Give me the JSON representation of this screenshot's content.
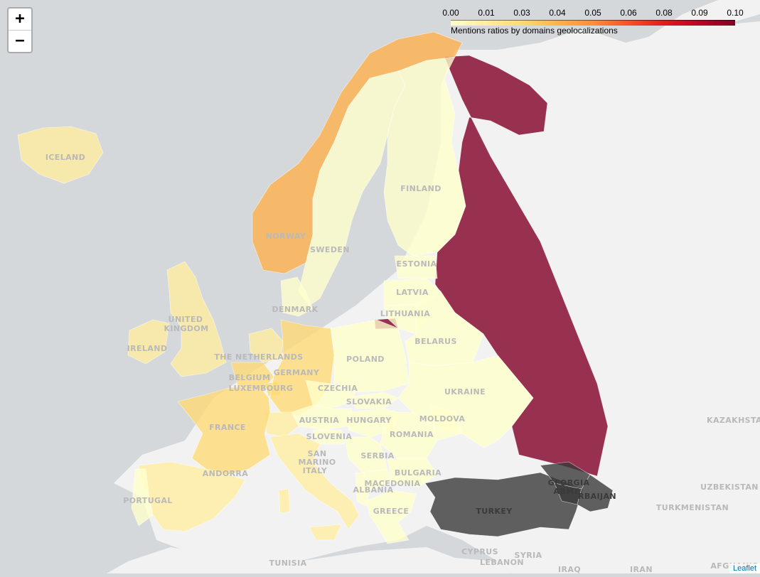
{
  "map": {
    "zoom_in_label": "+",
    "zoom_out_label": "−",
    "attribution": "Leaflet"
  },
  "legend": {
    "caption": "Mentions ratios by domains geolocalizations",
    "ticks": [
      "0.00",
      "0.01",
      "0.03",
      "0.04",
      "0.05",
      "0.06",
      "0.08",
      "0.09",
      "0.10"
    ],
    "domain": [
      0,
      0.1
    ],
    "colors": [
      "#ffffcc",
      "#ffeda0",
      "#fed976",
      "#feb24c",
      "#fd8d3c",
      "#fc4e2a",
      "#e31a1c",
      "#bd0026",
      "#800026"
    ]
  },
  "colors": {
    "sea": "#d4d8da",
    "land": "#f2f2f2",
    "no_data": "#3a3a3a"
  },
  "countries": {
    "russia": {
      "label": "",
      "value": 0.1
    },
    "turkey": {
      "label": "TURKEY",
      "value": null
    },
    "norway": {
      "label": "NORWAY",
      "value": 0.04
    },
    "sweden": {
      "label": "SWEDEN",
      "value": 0.0
    },
    "finland": {
      "label": "FINLAND",
      "value": 0.0
    },
    "iceland": {
      "label": "ICELAND",
      "value": 0.01
    },
    "germany": {
      "label": "GERMANY",
      "value": 0.02
    },
    "france": {
      "label": "FRANCE",
      "value": 0.02
    },
    "spain": {
      "label": "",
      "value": 0.015
    },
    "portugal": {
      "label": "PORTUGAL",
      "value": 0.0
    },
    "uk": {
      "label_1": "UNITED",
      "label_2": "KINGDOM",
      "value": 0.01
    },
    "ireland": {
      "label": "IRELAND",
      "value": 0.01
    },
    "italy": {
      "label": "ITALY",
      "value": 0.01
    },
    "belgium": {
      "label": "BELGIUM",
      "value": 0.02
    },
    "netherlands": {
      "label": "THE NETHERLANDS",
      "value": 0.01
    },
    "luxembourg": {
      "label": "LUXEMBOURG",
      "value": 0.02
    },
    "denmark": {
      "label": "DENMARK",
      "value": 0.0
    },
    "poland": {
      "label": "POLAND",
      "value": 0.0
    },
    "czechia": {
      "label": "CZECHIA",
      "value": 0.0
    },
    "slovakia": {
      "label": "SLOVAKIA",
      "value": 0.0
    },
    "austria": {
      "label": "AUSTRIA",
      "value": 0.0
    },
    "hungary": {
      "label": "HUNGARY",
      "value": 0.0
    },
    "slovenia": {
      "label": "SLOVENIA",
      "value": 0.0
    },
    "romania": {
      "label": "ROMANIA",
      "value": 0.0
    },
    "moldova": {
      "label": "MOLDOVA",
      "value": 0.0
    },
    "ukraine": {
      "label": "UKRAINE",
      "value": 0.005
    },
    "belarus": {
      "label": "BELARUS",
      "value": 0.0
    },
    "lithuania": {
      "label": "LITHUANIA",
      "value": 0.0
    },
    "latvia": {
      "label": "LATVIA",
      "value": 0.0
    },
    "estonia": {
      "label": "ESTONIA",
      "value": 0.0
    },
    "serbia": {
      "label": "SERBIA",
      "value": 0.0
    },
    "bulgaria": {
      "label": "BULGARIA",
      "value": 0.0
    },
    "greece": {
      "label": "GREECE",
      "value": 0.0
    },
    "macedonia": {
      "label": "MACEDONIA",
      "value": 0.0
    },
    "albania": {
      "label": "ALBANIA",
      "value": 0.0
    },
    "switzerland": {
      "label": "",
      "value": 0.01
    },
    "georgia": {
      "label": "GEORGIA",
      "value": null
    },
    "armenia": {
      "label": "ARME",
      "value": null
    },
    "azerbaijan": {
      "label": "RBAIJAN",
      "value": null
    },
    "kaliningrad": {
      "label": "",
      "value": 0.1
    }
  },
  "outside_labels": {
    "san_marino_1": "SAN",
    "san_marino_2": "MARINO",
    "andorra": "ANDORRA",
    "kazakhstan": "KAZAKHSTA",
    "uzbekistan": "UZBEKISTAN",
    "turkmenistan": "TURKMENISTAN",
    "syria": "SYRIA",
    "cyprus": "CYPRUS",
    "lebanon": "LEBANON",
    "iraq": "IRAQ",
    "iran": "IRAN",
    "tunisia": "TUNISIA",
    "afghanistan": "AFGHANIS"
  }
}
